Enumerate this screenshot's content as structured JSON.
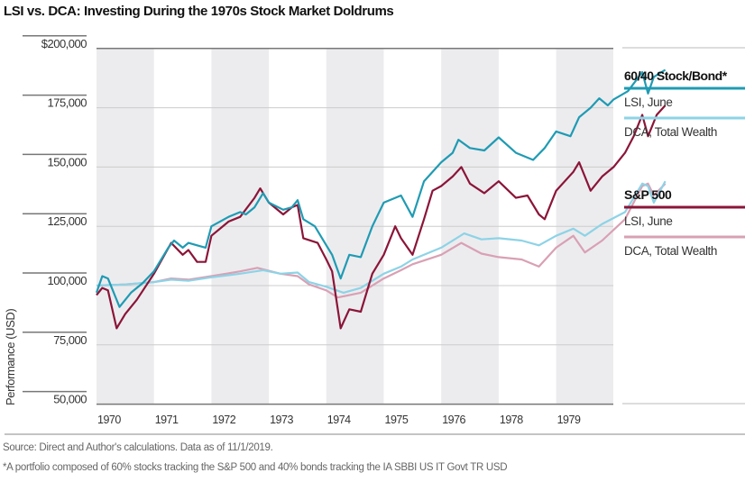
{
  "chart_data": {
    "type": "line",
    "title": "LSI vs. DCA: Investing During the 1970s Stock Market Doldrums",
    "ylabel": "Performance (USD)",
    "xlabel": "",
    "ylim": [
      50000,
      200000
    ],
    "xlim": [
      1970,
      1979.95
    ],
    "yticks": [
      {
        "value": 200000,
        "label": "$200,000"
      },
      {
        "value": 175000,
        "label": "175,000"
      },
      {
        "value": 150000,
        "label": "150,000"
      },
      {
        "value": 125000,
        "label": "125,000"
      },
      {
        "value": 100000,
        "label": "100,000"
      },
      {
        "value": 75000,
        "label": "75,000"
      },
      {
        "value": 50000,
        "label": "50,000"
      }
    ],
    "xticks": [
      "1970",
      "1971",
      "1972",
      "1973",
      "1974",
      "1975",
      "1976",
      "1978",
      "1979"
    ],
    "grid": true,
    "shaded_alternating_year_bands": true,
    "legend_placement": "right",
    "legend_groups": [
      {
        "heading": "60/40 Stock/Bond*",
        "entries": [
          {
            "label": "LSI, June",
            "color": "#1f9bb3"
          },
          {
            "label": "DCA, Total Wealth",
            "color": "#8dd3e6"
          }
        ]
      },
      {
        "heading": "S&P 500",
        "entries": [
          {
            "label": "LSI, June",
            "color": "#8b1538"
          },
          {
            "label": "DCA, Total Wealth",
            "color": "#d9a0b4"
          }
        ]
      }
    ],
    "series": [
      {
        "name": "60/40 Stock/Bond* LSI, June",
        "color": "#1f9bb3",
        "x": [
          1970.0,
          1970.1,
          1970.2,
          1970.4,
          1970.6,
          1970.8,
          1971.0,
          1971.25,
          1971.35,
          1971.5,
          1971.6,
          1971.75,
          1971.9,
          1972.0,
          1972.3,
          1972.5,
          1972.6,
          1972.75,
          1972.9,
          1973.0,
          1973.25,
          1973.4,
          1973.5,
          1973.6,
          1973.8,
          1974.0,
          1974.1,
          1974.25,
          1974.4,
          1974.6,
          1974.8,
          1975.0,
          1975.3,
          1975.5,
          1975.7,
          1976.0,
          1976.2,
          1976.3,
          1976.5,
          1976.75,
          1977.0,
          1977.3,
          1977.6,
          1977.8,
          1978.0,
          1978.25,
          1978.4,
          1978.6,
          1978.75,
          1978.9,
          1979.0,
          1979.25,
          1979.5,
          1979.6,
          1979.7,
          1979.9
        ],
        "y": [
          97000,
          104000,
          103000,
          91000,
          97000,
          101000,
          106000,
          116000,
          119000,
          116000,
          118000,
          117000,
          116000,
          125000,
          129000,
          131000,
          130000,
          133000,
          139000,
          135000,
          132000,
          133000,
          136000,
          128000,
          125000,
          117000,
          113000,
          103000,
          113000,
          112000,
          125000,
          135000,
          138000,
          129000,
          144000,
          152000,
          156000,
          161500,
          158000,
          157000,
          162500,
          156000,
          153000,
          158000,
          165000,
          163000,
          171000,
          175000,
          179000,
          176000,
          178500,
          182000,
          190000,
          181000,
          188000,
          191000
        ]
      },
      {
        "name": "60/40 Stock/Bond* DCA, Total Wealth",
        "color": "#8dd3e6",
        "x": [
          1970.0,
          1970.5,
          1971.0,
          1971.3,
          1971.6,
          1972.0,
          1972.5,
          1972.9,
          1973.2,
          1973.5,
          1973.7,
          1974.0,
          1974.3,
          1974.6,
          1975.0,
          1975.3,
          1975.5,
          1976.0,
          1976.4,
          1976.7,
          1977.0,
          1977.4,
          1977.7,
          1978.0,
          1978.3,
          1978.5,
          1978.8,
          1979.2,
          1979.5,
          1979.6,
          1979.7,
          1979.9
        ],
        "y": [
          100000,
          100500,
          101500,
          102500,
          102000,
          103500,
          105000,
          106500,
          105000,
          105500,
          101500,
          99500,
          97000,
          99000,
          105000,
          108000,
          111000,
          116000,
          122000,
          119500,
          120000,
          119000,
          117000,
          121000,
          124000,
          121000,
          126000,
          131000,
          143000,
          142000,
          135000,
          144000
        ]
      },
      {
        "name": "S&P 500 LSI, June",
        "color": "#8b1538",
        "x": [
          1970.0,
          1970.1,
          1970.2,
          1970.35,
          1970.5,
          1970.7,
          1971.0,
          1971.3,
          1971.5,
          1971.6,
          1971.75,
          1971.9,
          1972.0,
          1972.3,
          1972.5,
          1972.75,
          1972.85,
          1973.0,
          1973.25,
          1973.4,
          1973.5,
          1973.6,
          1973.85,
          1974.0,
          1974.1,
          1974.25,
          1974.4,
          1974.6,
          1974.8,
          1975.0,
          1975.2,
          1975.3,
          1975.5,
          1975.7,
          1975.85,
          1976.0,
          1976.2,
          1976.35,
          1976.5,
          1976.75,
          1977.0,
          1977.3,
          1977.5,
          1977.7,
          1977.8,
          1978.0,
          1978.3,
          1978.4,
          1978.6,
          1978.8,
          1979.0,
          1979.2,
          1979.35,
          1979.5,
          1979.6,
          1979.75,
          1979.9
        ],
        "y": [
          96000,
          99000,
          98000,
          82000,
          88000,
          94000,
          105000,
          118000,
          113000,
          115000,
          110000,
          110000,
          121000,
          127000,
          129000,
          137000,
          141000,
          135000,
          130000,
          133000,
          134000,
          120000,
          118000,
          111000,
          106000,
          82000,
          90000,
          89000,
          105000,
          113000,
          125000,
          120000,
          113000,
          128000,
          140000,
          142000,
          146000,
          150000,
          143000,
          139000,
          144000,
          137000,
          138000,
          130000,
          128000,
          140000,
          148000,
          152000,
          140000,
          146000,
          150000,
          156000,
          163000,
          172000,
          163000,
          172000,
          176000
        ]
      },
      {
        "name": "S&P 500 DCA, Total Wealth",
        "color": "#d9a0b4",
        "x": [
          1970.0,
          1970.5,
          1971.0,
          1971.3,
          1971.6,
          1972.0,
          1972.5,
          1972.8,
          1973.2,
          1973.5,
          1973.7,
          1974.0,
          1974.2,
          1974.6,
          1975.0,
          1975.3,
          1975.5,
          1976.0,
          1976.35,
          1976.7,
          1977.0,
          1977.4,
          1977.7,
          1978.0,
          1978.3,
          1978.5,
          1978.8,
          1979.2,
          1979.5,
          1979.6,
          1979.7,
          1979.9
        ],
        "y": [
          100000,
          100500,
          101500,
          103000,
          102500,
          104000,
          106000,
          107500,
          105000,
          104000,
          100500,
          98000,
          95000,
          97000,
          103000,
          106500,
          109000,
          113000,
          118000,
          113500,
          112000,
          111000,
          108000,
          116000,
          121000,
          114000,
          119000,
          128000,
          142000,
          143000,
          138000,
          143000
        ]
      }
    ]
  },
  "source": "Source: Direct and Author's calculations. Data as of 11/1/2019.",
  "footnote": "*A portfolio composed of 60% stocks tracking the S&P 500 and 40% bonds tracking the IA SBBI US IT Govt TR USD"
}
